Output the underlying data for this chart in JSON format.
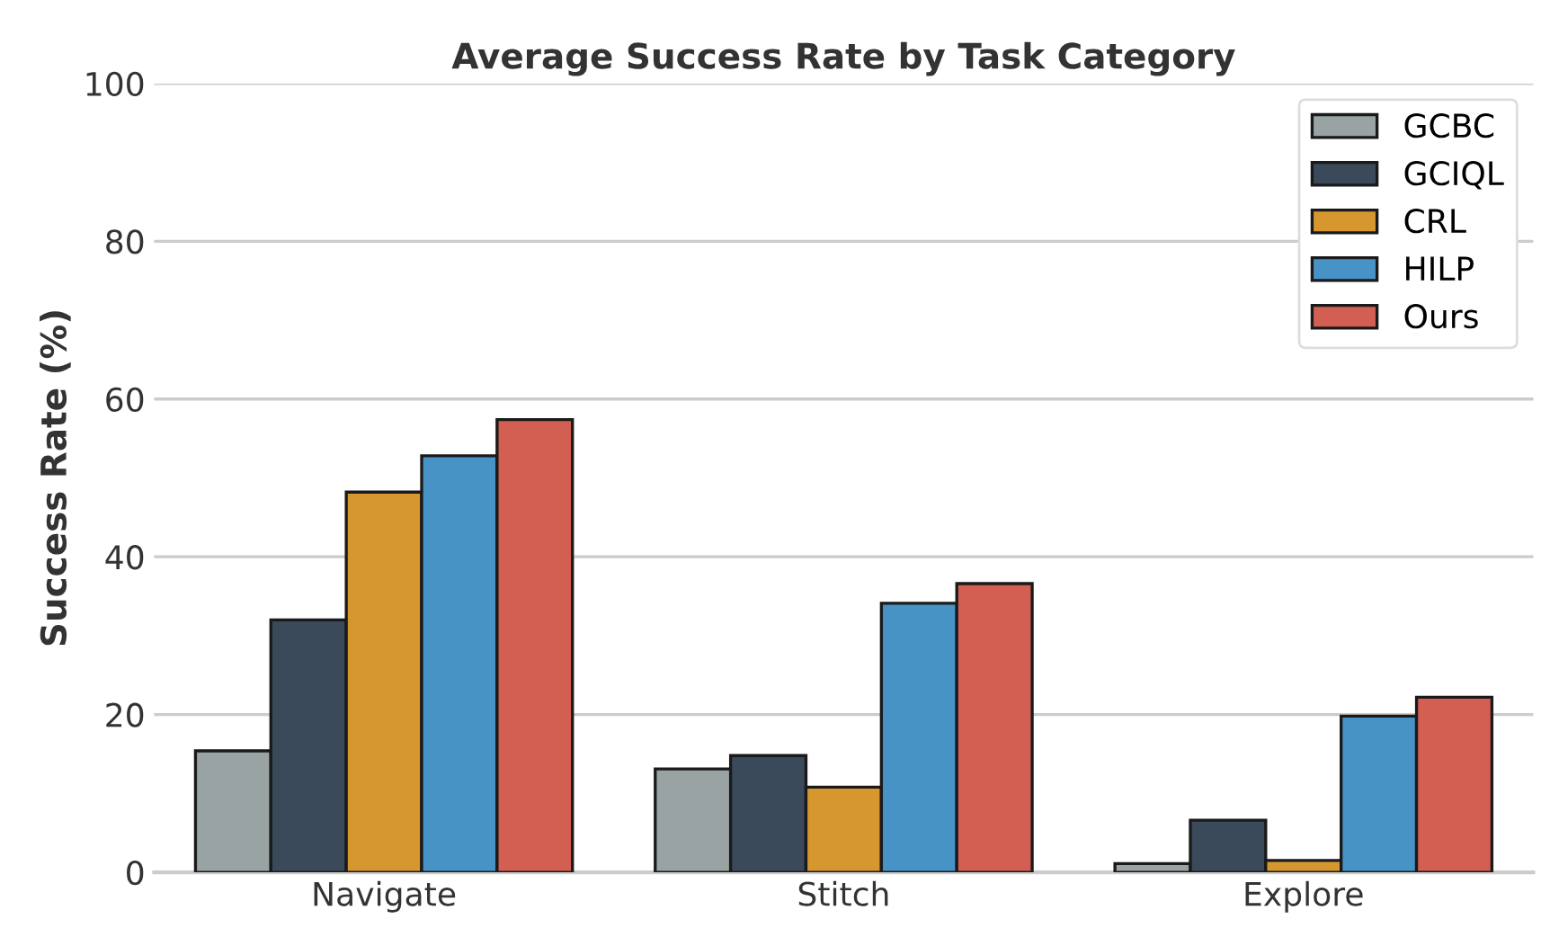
{
  "chart_data": {
    "type": "bar",
    "title": "Average Success Rate by Task Category",
    "ylabel": "Success Rate (%)",
    "categories": [
      "Navigate",
      "Stitch",
      "Explore"
    ],
    "series": [
      {
        "name": "GCBC",
        "color": "#99a3a4",
        "values": [
          15.4,
          13.1,
          1.1
        ]
      },
      {
        "name": "GCIQL",
        "color": "#3a4a5b",
        "values": [
          32.0,
          14.8,
          6.6
        ]
      },
      {
        "name": "CRL",
        "color": "#d6972f",
        "values": [
          48.2,
          10.8,
          1.5
        ]
      },
      {
        "name": "HILP",
        "color": "#4893c6",
        "values": [
          52.8,
          34.1,
          19.8
        ]
      },
      {
        "name": "Ours",
        "color": "#d35f52",
        "values": [
          57.4,
          36.6,
          22.2
        ]
      }
    ],
    "ylim": [
      0,
      100
    ],
    "yticks": [
      0,
      20,
      40,
      60,
      80,
      100
    ],
    "grid": "y",
    "legend": "top right"
  }
}
